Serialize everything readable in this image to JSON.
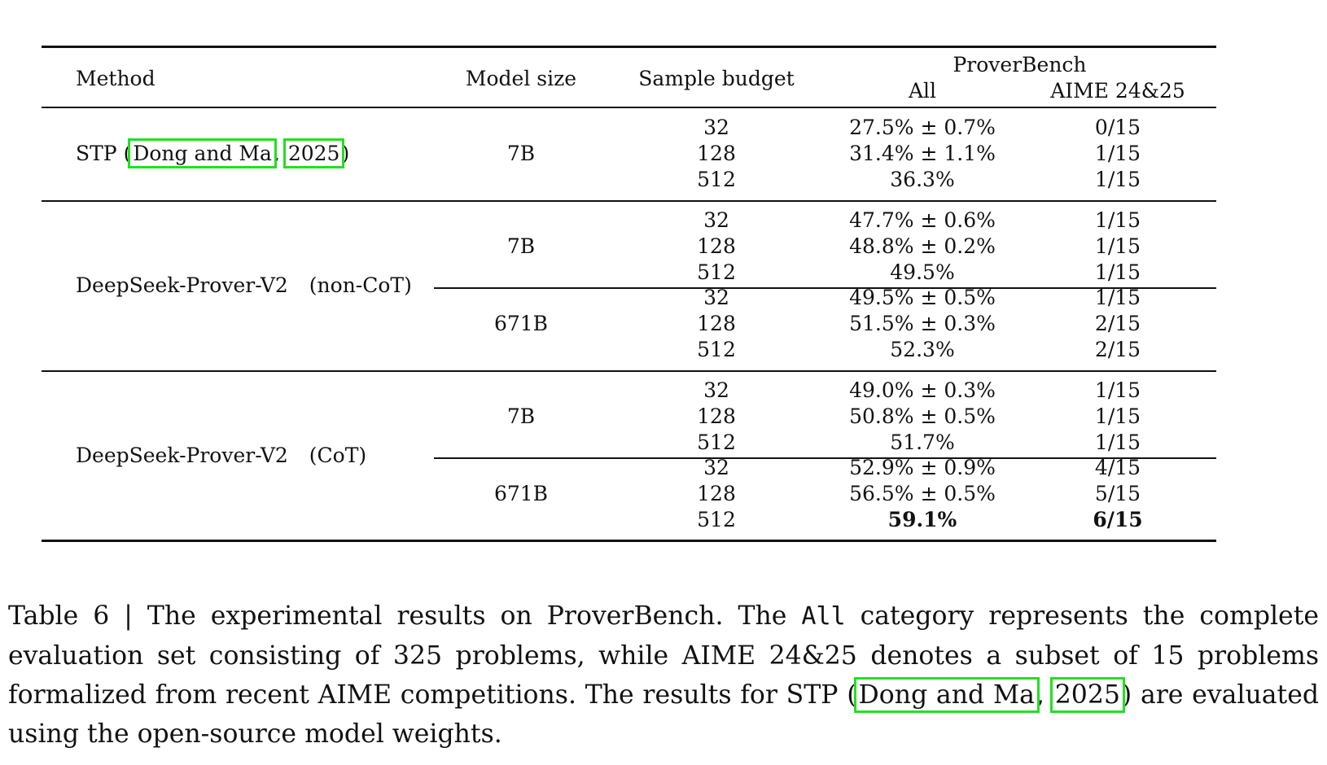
{
  "table": {
    "headers": {
      "method": "Method",
      "model_size": "Model size",
      "sample_budget": "Sample budget",
      "proverbench": "ProverBench",
      "all": "All",
      "aime": "AIME 24&25"
    },
    "stp": {
      "method_prefix": "STP (",
      "cite_author": "Dong and Ma",
      "cite_sep": ", ",
      "cite_year": "2025",
      "method_suffix": ")",
      "size": "7B",
      "rows": [
        {
          "budget": "32",
          "all": "27.5% ± 0.7%",
          "aime": "0/15"
        },
        {
          "budget": "128",
          "all": "31.4% ± 1.1%",
          "aime": "1/15"
        },
        {
          "budget": "512",
          "all": "36.3%",
          "aime": "1/15"
        }
      ]
    },
    "noncot": {
      "method": "DeepSeek-Prover-V2",
      "variant": "(non-CoT)",
      "groups": [
        {
          "size": "7B",
          "rows": [
            {
              "budget": "32",
              "all": "47.7% ± 0.6%",
              "aime": "1/15"
            },
            {
              "budget": "128",
              "all": "48.8% ± 0.2%",
              "aime": "1/15"
            },
            {
              "budget": "512",
              "all": "49.5%",
              "aime": "1/15"
            }
          ]
        },
        {
          "size": "671B",
          "rows": [
            {
              "budget": "32",
              "all": "49.5% ± 0.5%",
              "aime": "1/15"
            },
            {
              "budget": "128",
              "all": "51.5% ± 0.3%",
              "aime": "2/15"
            },
            {
              "budget": "512",
              "all": "52.3%",
              "aime": "2/15"
            }
          ]
        }
      ]
    },
    "cot": {
      "method": "DeepSeek-Prover-V2",
      "variant": "(CoT)",
      "groups": [
        {
          "size": "7B",
          "rows": [
            {
              "budget": "32",
              "all": "49.0% ± 0.3%",
              "aime": "1/15"
            },
            {
              "budget": "128",
              "all": "50.8% ± 0.5%",
              "aime": "1/15"
            },
            {
              "budget": "512",
              "all": "51.7%",
              "aime": "1/15"
            }
          ]
        },
        {
          "size": "671B",
          "rows": [
            {
              "budget": "32",
              "all": "52.9% ± 0.9%",
              "aime": "4/15"
            },
            {
              "budget": "128",
              "all": "56.5% ± 0.5%",
              "aime": "5/15"
            },
            {
              "budget": "512",
              "all": "59.1%",
              "aime": "6/15"
            }
          ]
        }
      ]
    }
  },
  "caption": {
    "part1": "Table 6 | The experimental results on ProverBench. The ",
    "code": "All",
    "part2": " category represents the complete evaluation set consisting of 325 problems, while AIME 24&25 denotes a subset of 15 problems formalized from recent AIME competitions.  The results for STP (",
    "cite_author": "Dong and Ma",
    "cite_sep": ", ",
    "cite_year": "2025",
    "part3": ") are evaluated using the open-source model weights."
  }
}
